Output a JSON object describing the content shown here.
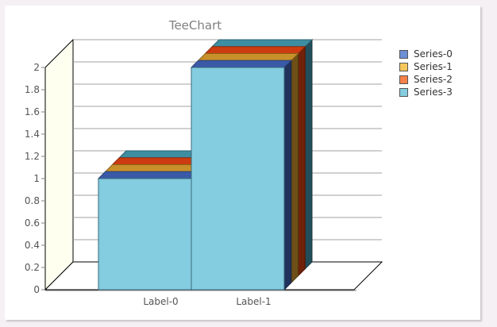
{
  "chart_data": {
    "type": "bar",
    "title": "TeeChart",
    "categories": [
      "Label-0",
      "Label-1"
    ],
    "series": [
      {
        "name": "Series-0",
        "values": [
          1,
          2
        ],
        "color": "#3a5aa8",
        "legend_color": "#6c8fd6"
      },
      {
        "name": "Series-1",
        "values": [
          1,
          2
        ],
        "color": "#c8902a",
        "legend_color": "#f5c75a"
      },
      {
        "name": "Series-2",
        "values": [
          1,
          2
        ],
        "color": "#cc3c10",
        "legend_color": "#f5824a"
      },
      {
        "name": "Series-3",
        "values": [
          1,
          2
        ],
        "color": "#3e8ea2",
        "legend_color": "#84cce0"
      }
    ],
    "y_ticks": [
      "0",
      "0.2",
      "0.4",
      "0.6",
      "0.8",
      "1",
      "1.2",
      "1.4",
      "1.6",
      "1.8",
      "2"
    ],
    "ylim": [
      0,
      2
    ],
    "grid": true,
    "legend": "right",
    "colors": {
      "front_face": "#84cce0",
      "back_wall": "#fffff0"
    }
  }
}
